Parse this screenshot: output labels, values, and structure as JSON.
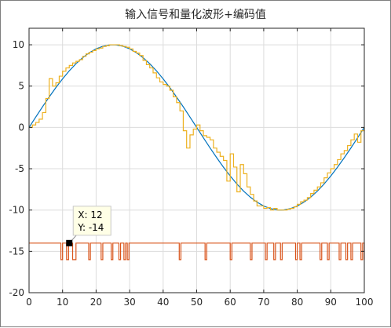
{
  "colors": {
    "background": "#ffffff",
    "axes_border": "#262626",
    "grid": "#dcdcdc",
    "sine_line": "#0072bd",
    "quantized_line": "#edb120",
    "code_line": "#d95319",
    "datatip_background": "#ffffe6",
    "datatip_marker": "#000000"
  },
  "chart_data": {
    "type": "line",
    "title": "输入信号和量化波形+编码值",
    "xlabel": "",
    "ylabel": "",
    "xlim": [
      0,
      100
    ],
    "ylim": [
      -20,
      12
    ],
    "xticks": [
      0,
      10,
      20,
      30,
      40,
      50,
      60,
      70,
      80,
      90,
      100
    ],
    "yticks": [
      -20,
      -15,
      -10,
      -5,
      0,
      5,
      10
    ],
    "grid": true,
    "legend": "none",
    "series": [
      {
        "id": "sine",
        "style": "line",
        "color": "#0072bd",
        "x": [
          0,
          2,
          4,
          6,
          8,
          10,
          12,
          14,
          16,
          18,
          20,
          22,
          24,
          25,
          26,
          28,
          30,
          32,
          34,
          36,
          38,
          40,
          42,
          44,
          46,
          48,
          50,
          52,
          54,
          56,
          58,
          60,
          62,
          64,
          66,
          68,
          70,
          72,
          74,
          75,
          76,
          78,
          80,
          82,
          84,
          86,
          88,
          90,
          92,
          94,
          96,
          98,
          100
        ],
        "y": [
          0,
          1.25,
          2.49,
          3.68,
          4.82,
          5.88,
          6.85,
          7.71,
          8.44,
          9.05,
          9.51,
          9.82,
          9.98,
          10,
          9.98,
          9.82,
          9.51,
          9.05,
          8.44,
          7.71,
          6.85,
          5.88,
          4.82,
          3.68,
          2.49,
          1.25,
          0,
          -1.25,
          -2.49,
          -3.68,
          -4.82,
          -5.88,
          -6.85,
          -7.71,
          -8.44,
          -9.05,
          -9.51,
          -9.82,
          -9.98,
          -10,
          -9.98,
          -9.82,
          -9.51,
          -9.05,
          -8.44,
          -7.71,
          -6.85,
          -5.88,
          -4.82,
          -3.68,
          -2.49,
          -1.25,
          0
        ]
      },
      {
        "id": "quantized",
        "style": "stairs",
        "color": "#edb120",
        "x": [
          0,
          1,
          2,
          3,
          4,
          5,
          6,
          7,
          8,
          9,
          10,
          11,
          12,
          13,
          14,
          15,
          16,
          17,
          18,
          19,
          20,
          21,
          22,
          23,
          24,
          25,
          26,
          27,
          28,
          29,
          30,
          31,
          32,
          33,
          34,
          35,
          36,
          37,
          38,
          39,
          40,
          41,
          42,
          43,
          44,
          45,
          46,
          47,
          48,
          49,
          50,
          51,
          52,
          53,
          54,
          55,
          56,
          57,
          58,
          59,
          60,
          61,
          62,
          63,
          64,
          65,
          66,
          67,
          68,
          69,
          70,
          71,
          72,
          73,
          74,
          75,
          76,
          77,
          78,
          79,
          80,
          81,
          82,
          83,
          84,
          85,
          86,
          87,
          88,
          89,
          90,
          91,
          92,
          93,
          94,
          95,
          96,
          97,
          98,
          99,
          100
        ],
        "y": [
          0,
          0.3,
          0.6,
          1,
          1.8,
          3.5,
          5.9,
          5,
          5.4,
          6.2,
          6.8,
          7.2,
          7.5,
          7.8,
          8,
          8.2,
          8.6,
          8.9,
          9.1,
          9.3,
          9.5,
          9.6,
          9.8,
          9.9,
          10,
          10,
          10,
          9.9,
          9.8,
          9.7,
          9.5,
          9.2,
          9,
          8.7,
          8.1,
          7.6,
          7.2,
          6.6,
          6,
          5.5,
          5.2,
          5,
          4.5,
          3.7,
          3,
          2,
          -0.4,
          -2.5,
          -0.9,
          -0.2,
          0.3,
          -0.4,
          -1,
          -1.2,
          -1.5,
          -2.5,
          -3,
          -3.5,
          -4,
          -6.5,
          -3.2,
          -4.8,
          -7.8,
          -4.5,
          -5.6,
          -7.2,
          -8.1,
          -8.9,
          -9.5,
          -9.5,
          -9.8,
          -9.7,
          -10,
          -9.8,
          -10,
          -10,
          -10,
          -9.9,
          -9.8,
          -9.6,
          -9.3,
          -9,
          -8.8,
          -8.5,
          -8,
          -7.6,
          -7.2,
          -6.7,
          -6.1,
          -5.5,
          -5,
          -4.5,
          -3.9,
          -3.2,
          -2.8,
          -2.2,
          -1.5,
          -0.8,
          -1.8,
          -0.4,
          0
        ]
      },
      {
        "id": "code",
        "style": "stairs",
        "color": "#d95319",
        "x": [
          0,
          9.5,
          10,
          11.2,
          11.8,
          13,
          14,
          17.8,
          18.3,
          21.5,
          22,
          24.5,
          25,
          26.8,
          27.3,
          28.3,
          28.8,
          29.3,
          29.8,
          44.8,
          45.3,
          52.5,
          53,
          60,
          60.5,
          66,
          66.5,
          70.5,
          71,
          73,
          73.5,
          75,
          75.5,
          79.5,
          80,
          80.8,
          81.3,
          86.8,
          87.3,
          89,
          89.5,
          92.5,
          93,
          94.5,
          95,
          96,
          96.5,
          99,
          99.5,
          100
        ],
        "y": [
          -14,
          -16,
          -14,
          -16,
          -14,
          -16,
          -14,
          -16,
          -14,
          -16,
          -14,
          -16,
          -14,
          -16,
          -14,
          -16,
          -14,
          -16,
          -14,
          -16,
          -14,
          -16,
          -14,
          -16,
          -14,
          -16,
          -14,
          -16,
          -14,
          -16,
          -14,
          -16,
          -14,
          -16,
          -14,
          -16,
          -14,
          -16,
          -14,
          -16,
          -14,
          -16,
          -14,
          -16,
          -14,
          -16,
          -14,
          -16,
          -14,
          -16
        ]
      }
    ],
    "annotations": [
      {
        "type": "datatip",
        "x": 12,
        "y": -14,
        "label_x": "X: 12",
        "label_y": "Y: -14"
      }
    ]
  }
}
